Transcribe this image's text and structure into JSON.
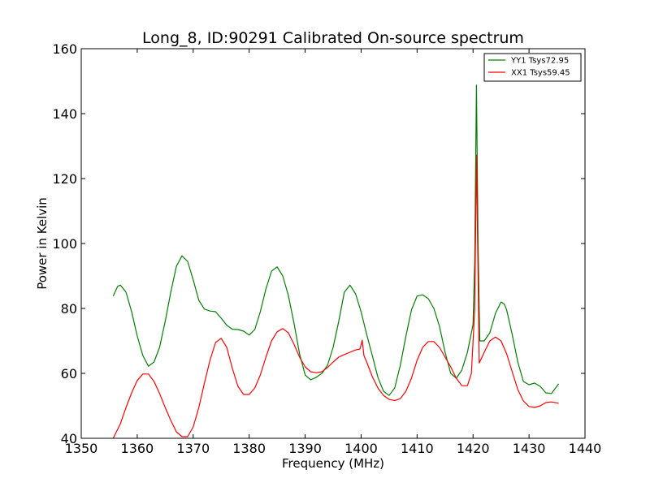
{
  "chart_data": {
    "type": "line",
    "title": "Long_8, ID:90291 Calibrated On-source spectrum",
    "xlabel": "Frequency (MHz)",
    "ylabel": "Power in Kelvin",
    "xlim": [
      1350,
      1440
    ],
    "ylim": [
      40,
      160
    ],
    "xticks": [
      1350,
      1360,
      1370,
      1380,
      1390,
      1400,
      1410,
      1420,
      1430,
      1440
    ],
    "yticks": [
      40,
      60,
      80,
      100,
      120,
      140,
      160
    ],
    "grid": false,
    "legend_position": "top-right",
    "series": [
      {
        "name": "YY1 Tsys72.95",
        "color": "#008000",
        "points": [
          [
            1355.7,
            83.8
          ],
          [
            1356.5,
            86.8
          ],
          [
            1357.0,
            87.2
          ],
          [
            1358.0,
            85.0
          ],
          [
            1359.0,
            79.0
          ],
          [
            1360.0,
            71.5
          ],
          [
            1361.0,
            65.5
          ],
          [
            1362.0,
            62.2
          ],
          [
            1363.0,
            63.5
          ],
          [
            1364.0,
            68.0
          ],
          [
            1365.0,
            76.0
          ],
          [
            1366.0,
            85.0
          ],
          [
            1367.0,
            93.0
          ],
          [
            1368.0,
            96.2
          ],
          [
            1369.0,
            94.5
          ],
          [
            1370.0,
            88.8
          ],
          [
            1371.0,
            82.5
          ],
          [
            1372.0,
            79.8
          ],
          [
            1373.0,
            79.2
          ],
          [
            1374.0,
            79.0
          ],
          [
            1375.0,
            77.0
          ],
          [
            1376.0,
            74.8
          ],
          [
            1377.0,
            73.6
          ],
          [
            1378.0,
            73.5
          ],
          [
            1379.0,
            73.0
          ],
          [
            1380.0,
            71.8
          ],
          [
            1381.0,
            73.5
          ],
          [
            1382.0,
            79.0
          ],
          [
            1383.0,
            86.0
          ],
          [
            1384.0,
            91.5
          ],
          [
            1385.0,
            92.8
          ],
          [
            1386.0,
            90.0
          ],
          [
            1387.0,
            84.0
          ],
          [
            1388.0,
            75.5
          ],
          [
            1389.0,
            66.0
          ],
          [
            1390.0,
            59.5
          ],
          [
            1391.0,
            58.0
          ],
          [
            1392.0,
            58.8
          ],
          [
            1393.0,
            60.0
          ],
          [
            1394.0,
            62.5
          ],
          [
            1395.0,
            68.0
          ],
          [
            1396.0,
            76.0
          ],
          [
            1397.0,
            85.0
          ],
          [
            1398.0,
            87.2
          ],
          [
            1399.0,
            84.5
          ],
          [
            1400.0,
            79.0
          ],
          [
            1401.0,
            72.0
          ],
          [
            1402.0,
            65.5
          ],
          [
            1403.0,
            58.8
          ],
          [
            1404.0,
            54.5
          ],
          [
            1405.0,
            53.2
          ],
          [
            1406.0,
            55.5
          ],
          [
            1407.0,
            62.5
          ],
          [
            1408.0,
            71.5
          ],
          [
            1409.0,
            79.5
          ],
          [
            1410.0,
            83.8
          ],
          [
            1411.0,
            84.2
          ],
          [
            1412.0,
            83.0
          ],
          [
            1413.0,
            80.0
          ],
          [
            1414.0,
            74.5
          ],
          [
            1415.0,
            66.5
          ],
          [
            1416.0,
            60.0
          ],
          [
            1417.0,
            58.5
          ],
          [
            1418.0,
            61.0
          ],
          [
            1419.0,
            66.5
          ],
          [
            1420.0,
            75.0
          ],
          [
            1420.3,
            95.0
          ],
          [
            1420.6,
            148.8
          ],
          [
            1420.9,
            100.0
          ],
          [
            1421.2,
            70.0
          ],
          [
            1422.0,
            70.0
          ],
          [
            1423.0,
            72.5
          ],
          [
            1424.0,
            78.5
          ],
          [
            1425.0,
            82.0
          ],
          [
            1425.6,
            81.3
          ],
          [
            1426.0,
            79.5
          ],
          [
            1427.0,
            72.0
          ],
          [
            1428.0,
            63.5
          ],
          [
            1429.0,
            57.5
          ],
          [
            1430.0,
            56.5
          ],
          [
            1431.0,
            57.0
          ],
          [
            1432.0,
            56.0
          ],
          [
            1433.0,
            54.0
          ],
          [
            1434.0,
            53.8
          ],
          [
            1435.3,
            56.8
          ]
        ]
      },
      {
        "name": "XX1 Tsys59.45",
        "color": "#ff0000",
        "points": [
          [
            1355.7,
            40.0
          ],
          [
            1357.0,
            44.5
          ],
          [
            1358.0,
            49.5
          ],
          [
            1359.0,
            54.0
          ],
          [
            1360.0,
            57.8
          ],
          [
            1361.0,
            59.8
          ],
          [
            1362.0,
            59.8
          ],
          [
            1363.0,
            57.5
          ],
          [
            1364.0,
            53.8
          ],
          [
            1365.0,
            49.5
          ],
          [
            1366.0,
            45.5
          ],
          [
            1367.0,
            42.0
          ],
          [
            1368.0,
            40.5
          ],
          [
            1369.0,
            40.5
          ],
          [
            1370.0,
            43.5
          ],
          [
            1371.0,
            49.5
          ],
          [
            1372.0,
            57.0
          ],
          [
            1373.0,
            64.0
          ],
          [
            1374.0,
            69.5
          ],
          [
            1375.0,
            70.8
          ],
          [
            1376.0,
            68.0
          ],
          [
            1377.0,
            61.5
          ],
          [
            1378.0,
            56.0
          ],
          [
            1379.0,
            53.5
          ],
          [
            1380.0,
            53.5
          ],
          [
            1381.0,
            55.5
          ],
          [
            1382.0,
            59.5
          ],
          [
            1383.0,
            65.0
          ],
          [
            1384.0,
            70.0
          ],
          [
            1385.0,
            72.8
          ],
          [
            1386.0,
            73.8
          ],
          [
            1387.0,
            72.5
          ],
          [
            1388.0,
            69.0
          ],
          [
            1389.0,
            65.0
          ],
          [
            1390.0,
            62.0
          ],
          [
            1391.0,
            60.5
          ],
          [
            1392.0,
            60.2
          ],
          [
            1393.0,
            60.5
          ],
          [
            1394.0,
            61.8
          ],
          [
            1395.0,
            63.5
          ],
          [
            1396.0,
            65.0
          ],
          [
            1397.0,
            65.8
          ],
          [
            1398.0,
            66.5
          ],
          [
            1399.0,
            67.2
          ],
          [
            1399.8,
            67.5
          ],
          [
            1400.2,
            70.2
          ],
          [
            1400.5,
            65.5
          ],
          [
            1401.0,
            63.5
          ],
          [
            1402.0,
            59.0
          ],
          [
            1403.0,
            55.5
          ],
          [
            1404.0,
            53.2
          ],
          [
            1405.0,
            52.0
          ],
          [
            1406.0,
            51.6
          ],
          [
            1407.0,
            52.2
          ],
          [
            1408.0,
            54.5
          ],
          [
            1409.0,
            58.5
          ],
          [
            1410.0,
            64.0
          ],
          [
            1411.0,
            68.0
          ],
          [
            1412.0,
            69.8
          ],
          [
            1413.0,
            69.8
          ],
          [
            1414.0,
            68.0
          ],
          [
            1415.0,
            65.0
          ],
          [
            1416.0,
            62.0
          ],
          [
            1417.0,
            58.5
          ],
          [
            1418.0,
            56.2
          ],
          [
            1419.0,
            56.2
          ],
          [
            1419.7,
            60.0
          ],
          [
            1420.3,
            80.0
          ],
          [
            1420.6,
            127.2
          ],
          [
            1420.9,
            90.0
          ],
          [
            1421.1,
            63.2
          ],
          [
            1422.0,
            66.5
          ],
          [
            1423.0,
            70.0
          ],
          [
            1424.0,
            71.2
          ],
          [
            1425.0,
            70.0
          ],
          [
            1426.0,
            66.0
          ],
          [
            1427.0,
            60.5
          ],
          [
            1428.0,
            55.0
          ],
          [
            1429.0,
            51.5
          ],
          [
            1430.0,
            49.8
          ],
          [
            1431.0,
            49.5
          ],
          [
            1432.0,
            50.0
          ],
          [
            1433.0,
            51.0
          ],
          [
            1434.0,
            51.2
          ],
          [
            1435.3,
            50.8
          ]
        ]
      }
    ]
  }
}
